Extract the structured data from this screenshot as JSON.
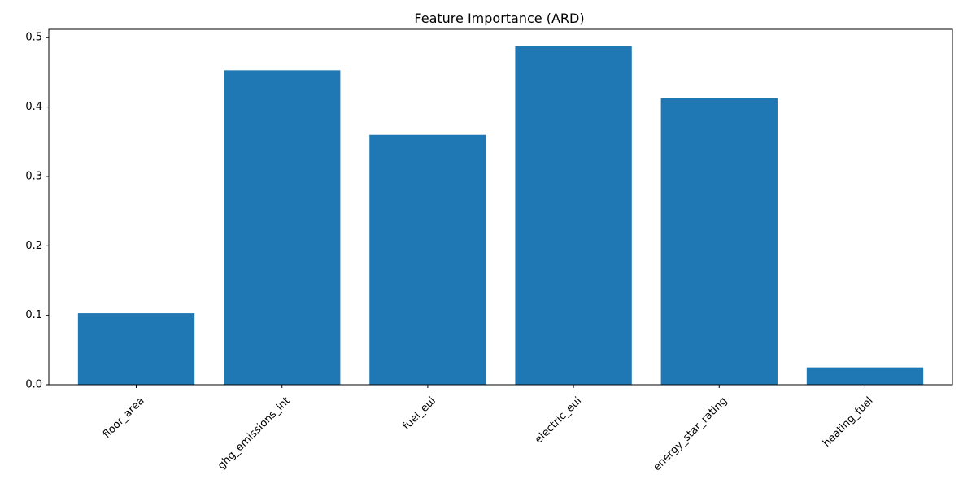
{
  "chart_data": {
    "type": "bar",
    "title": "Feature Importance (ARD)",
    "xlabel": "",
    "ylabel": "",
    "categories": [
      "floor_area",
      "ghg_emissions_int",
      "fuel_eui",
      "electric_eui",
      "energy_star_rating",
      "heating_fuel"
    ],
    "values": [
      0.103,
      0.453,
      0.36,
      0.488,
      0.413,
      0.025
    ],
    "ylim": [
      0,
      0.512
    ],
    "yticks": [
      0.0,
      0.1,
      0.2,
      0.3,
      0.4,
      0.5
    ],
    "ytick_labels": [
      "0.0",
      "0.1",
      "0.2",
      "0.3",
      "0.4",
      "0.5"
    ],
    "xtick_rotation_deg": 45,
    "grid": false,
    "legend": "none",
    "bar_color": "#1f77b4"
  }
}
